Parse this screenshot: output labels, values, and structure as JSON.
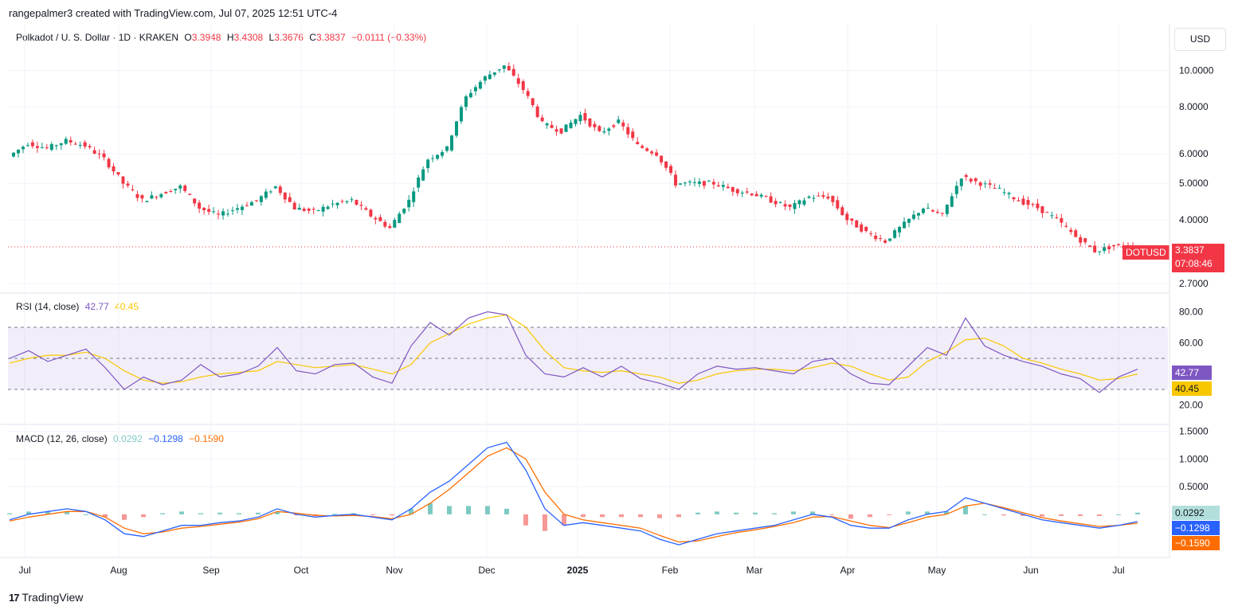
{
  "header": {
    "attribution": "rangepalmer3 created with TradingView.com, Jul 07, 2025 12:51 UTC-4",
    "symbol_desc": "Polkadot / U. S. Dollar · 1D · KRAKEN",
    "ohlc": {
      "o_label": "O",
      "o_value": "3.3948",
      "h_label": "H",
      "h_value": "3.4308",
      "l_label": "L",
      "l_value": "3.3676",
      "c_label": "C",
      "c_value": "3.3837",
      "change": "−0.0111 (−0.33%)"
    },
    "currency_button": "USD"
  },
  "price_tag": {
    "symbol": "DOTUSD",
    "price": "3.3837",
    "countdown": "07:08:46"
  },
  "rsi_legend": {
    "name": "RSI (14, close)",
    "rsi": "42.77",
    "ma": "40.45"
  },
  "macd_legend": {
    "name": "MACD (12, 26, close)",
    "hist": "0.0292",
    "macd": "−0.1298",
    "signal": "−0.1590"
  },
  "rsi_tags": {
    "rsi": "42.77",
    "ma": "40.45"
  },
  "macd_tags": {
    "hist": "0.0292",
    "macd": "−0.1298",
    "signal": "−0.1590"
  },
  "footer": {
    "brand": "TradingView"
  },
  "colors": {
    "up": "#089981",
    "down": "#f23645",
    "rsi": "#7e57c2",
    "rsi_ma": "#f9c700",
    "macd": "#2962ff",
    "signal": "#ff6d00",
    "hist_up": "#26a69a",
    "hist_down": "#ef5350"
  },
  "chart_data": [
    {
      "type": "candlestick",
      "title": "Polkadot / U. S. Dollar · 1D · KRAKEN",
      "y_scale": "log",
      "y_ticks": [
        "10.0000",
        "8.0000",
        "6.0000",
        "5.0000",
        "4.0000",
        "2.7000"
      ],
      "y_tick_values": [
        10,
        8,
        6,
        5,
        4,
        2.7
      ],
      "x_ticks": [
        "Jul",
        "Aug",
        "Sep",
        "Oct",
        "Nov",
        "Dec",
        "2025",
        "Feb",
        "Mar",
        "Apr",
        "May",
        "Jun",
        "Jul"
      ],
      "last_price": 3.3837,
      "weekly_closes": [
        5.9,
        6.4,
        6.2,
        6.5,
        6.3,
        5.8,
        5.0,
        4.5,
        4.7,
        4.9,
        4.3,
        4.1,
        4.3,
        4.5,
        4.9,
        4.3,
        4.2,
        4.4,
        4.5,
        4.1,
        3.8,
        4.5,
        5.8,
        6.2,
        8.5,
        9.6,
        10.3,
        8.9,
        7.2,
        6.9,
        7.6,
        6.8,
        7.3,
        6.3,
        6.0,
        5.0,
        5.0,
        5.0,
        4.8,
        4.7,
        4.5,
        4.3,
        4.6,
        4.6,
        4.0,
        3.7,
        3.5,
        3.9,
        4.3,
        4.1,
        5.2,
        5.0,
        4.8,
        4.5,
        4.3,
        4.0,
        3.6,
        3.3,
        3.4,
        3.38
      ]
    },
    {
      "type": "line",
      "title": "RSI (14, close)",
      "y_ticks": [
        "80.00",
        "60.00",
        "20.00"
      ],
      "y_tick_values": [
        80,
        60,
        20
      ],
      "bands": [
        70,
        50,
        30
      ],
      "series": [
        {
          "name": "RSI",
          "values": [
            50,
            55,
            48,
            52,
            56,
            44,
            30,
            38,
            33,
            36,
            46,
            38,
            40,
            45,
            57,
            42,
            40,
            46,
            47,
            38,
            34,
            58,
            73,
            65,
            76,
            80,
            78,
            52,
            40,
            38,
            44,
            38,
            45,
            37,
            34,
            30,
            40,
            45,
            43,
            44,
            42,
            40,
            48,
            50,
            40,
            34,
            33,
            45,
            57,
            52,
            76,
            58,
            52,
            48,
            45,
            40,
            37,
            28,
            38,
            43
          ]
        },
        {
          "name": "RSI MA",
          "values": [
            47,
            50,
            52,
            52,
            54,
            50,
            42,
            36,
            34,
            35,
            38,
            40,
            41,
            42,
            48,
            46,
            44,
            45,
            46,
            43,
            40,
            46,
            60,
            66,
            72,
            76,
            78,
            70,
            55,
            44,
            42,
            41,
            42,
            40,
            38,
            34,
            36,
            40,
            42,
            43,
            43,
            42,
            44,
            47,
            45,
            40,
            36,
            38,
            48,
            54,
            62,
            63,
            58,
            50,
            47,
            43,
            40,
            36,
            37,
            40
          ]
        }
      ]
    },
    {
      "type": "line",
      "title": "MACD (12, 26, close)",
      "y_ticks": [
        "1.5000",
        "1.0000",
        "0.5000"
      ],
      "y_tick_values": [
        1.5,
        1.0,
        0.5
      ],
      "series": [
        {
          "name": "MACD",
          "values": [
            -0.1,
            0.0,
            0.05,
            0.1,
            0.05,
            -0.1,
            -0.35,
            -0.4,
            -0.3,
            -0.2,
            -0.2,
            -0.15,
            -0.12,
            -0.05,
            0.1,
            0.0,
            -0.05,
            -0.02,
            0.0,
            -0.05,
            -0.1,
            0.1,
            0.4,
            0.6,
            0.9,
            1.2,
            1.3,
            0.8,
            0.1,
            -0.2,
            -0.15,
            -0.2,
            -0.25,
            -0.3,
            -0.45,
            -0.55,
            -0.45,
            -0.35,
            -0.3,
            -0.25,
            -0.2,
            -0.1,
            0.0,
            -0.05,
            -0.2,
            -0.25,
            -0.25,
            -0.1,
            0.0,
            0.05,
            0.3,
            0.2,
            0.1,
            0.0,
            -0.1,
            -0.15,
            -0.2,
            -0.25,
            -0.2,
            -0.13
          ]
        },
        {
          "name": "Signal",
          "values": [
            -0.12,
            -0.05,
            0.0,
            0.05,
            0.05,
            -0.05,
            -0.25,
            -0.35,
            -0.32,
            -0.25,
            -0.22,
            -0.18,
            -0.14,
            -0.08,
            0.05,
            0.02,
            -0.02,
            -0.03,
            -0.02,
            -0.04,
            -0.08,
            0.0,
            0.2,
            0.45,
            0.75,
            1.05,
            1.2,
            1.0,
            0.4,
            0.0,
            -0.1,
            -0.15,
            -0.2,
            -0.25,
            -0.38,
            -0.5,
            -0.48,
            -0.4,
            -0.33,
            -0.28,
            -0.22,
            -0.15,
            -0.05,
            -0.04,
            -0.12,
            -0.2,
            -0.24,
            -0.15,
            -0.05,
            0.0,
            0.15,
            0.2,
            0.12,
            0.03,
            -0.06,
            -0.12,
            -0.17,
            -0.22,
            -0.2,
            -0.16
          ]
        }
      ]
    }
  ]
}
